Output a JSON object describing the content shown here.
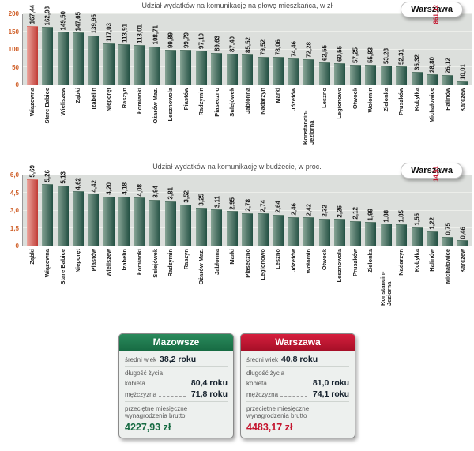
{
  "colors": {
    "bar_green": "#235043",
    "bar_highlight_red": "#c13b35",
    "tick_orange": "#d0612b",
    "badge_value_red": "#c4152e",
    "mazowsze_green": "#176b43",
    "warszawa_red": "#c4152e"
  },
  "chart_data": [
    {
      "type": "bar",
      "title": "Udział wydatków na komunikację na głowę mieszkańca, w zł",
      "badge": {
        "city": "Warszawa",
        "value": "861,12"
      },
      "y_ticks": [
        "0",
        "50",
        "100",
        "150",
        "200"
      ],
      "y_max": 200,
      "highlight_index": 0,
      "categories": [
        "Wiązowna",
        "Stare Babice",
        "Wieliszew",
        "Ząbki",
        "Izabelin",
        "Nieporęt",
        "Raszyn",
        "Łomianki",
        "Ożarów Maz.",
        "Lesznowola",
        "Piastów",
        "Radzymin",
        "Piaseczno",
        "Sulejówek",
        "Jabłonna",
        "Nadarzyn",
        "Marki",
        "Józefów",
        "Konstancin-Jeziorna",
        "Leszno",
        "Legionowo",
        "Otwock",
        "Wołomin",
        "Zielonka",
        "Pruszków",
        "Kobyłka",
        "Michałowice",
        "Halinów",
        "Karczew"
      ],
      "values": [
        "167,44",
        "162,98",
        "149,50",
        "147,65",
        "139,95",
        "117,03",
        "113,91",
        "113,01",
        "108,71",
        "99,89",
        "99,79",
        "97,10",
        "89,63",
        "87,40",
        "85,52",
        "79,52",
        "78,06",
        "74,46",
        "72,28",
        "62,55",
        "60,55",
        "57,25",
        "55,83",
        "53,28",
        "52,31",
        "35,32",
        "28,80",
        "26,12",
        "10,01"
      ]
    },
    {
      "type": "bar",
      "title": "Udział wydatków na komunikację w budżecie, w proc.",
      "badge": {
        "city": "Warszawa",
        "value": "14,51"
      },
      "y_ticks": [
        "0",
        "1,5",
        "3,0",
        "4,5",
        "6,0"
      ],
      "y_max": 6,
      "highlight_index": 0,
      "categories": [
        "Ząbki",
        "Wiązowna",
        "Stare Babice",
        "Nieporęt",
        "Piastów",
        "Wieliszew",
        "Izabelin",
        "Łomianki",
        "Sulejówek",
        "Radzymin",
        "Raszyn",
        "Ożarów Maz.",
        "Jabłonna",
        "Marki",
        "Piaseczno",
        "Legionowo",
        "Leszno",
        "Józefów",
        "Wołomin",
        "Otwock",
        "Lesznowola",
        "Pruszków",
        "Zielonka",
        "Konstancin-Jeziorna",
        "Nadarzyn",
        "Kobyłka",
        "Halinów",
        "Michałowice",
        "Karczew"
      ],
      "values": [
        "5,69",
        "5,26",
        "5,13",
        "4,62",
        "4,42",
        "4,20",
        "4,18",
        "4,08",
        "3,94",
        "3,81",
        "3,52",
        "3,25",
        "3,11",
        "2,95",
        "2,78",
        "2,74",
        "2,64",
        "2,46",
        "2,42",
        "2,32",
        "2,26",
        "2,12",
        "1,99",
        "1,88",
        "1,85",
        "1,55",
        "1,22",
        "0,75",
        "0,46"
      ]
    }
  ],
  "cards": [
    {
      "title": "Mazowsze",
      "avg_age_label": "średni wiek",
      "avg_age_value": "38,2 roku",
      "life_label": "długość życia",
      "female_label": "kobieta",
      "female_value": "80,4 roku",
      "male_label": "mężczyzna",
      "male_value": "71,8 roku",
      "salary_label": "przeciętne miesięczne wynagrodzenia brutto",
      "salary_value": "4227,93 zł"
    },
    {
      "title": "Warszawa",
      "avg_age_label": "średni wiek",
      "avg_age_value": "40,8 roku",
      "life_label": "długość życia",
      "female_label": "kobieta",
      "female_value": "81,0 roku",
      "male_label": "mężczyzna",
      "male_value": "74,1 roku",
      "salary_label": "przeciętne miesięczne wynagrodzenia brutto",
      "salary_value": "4483,17 zł"
    }
  ]
}
